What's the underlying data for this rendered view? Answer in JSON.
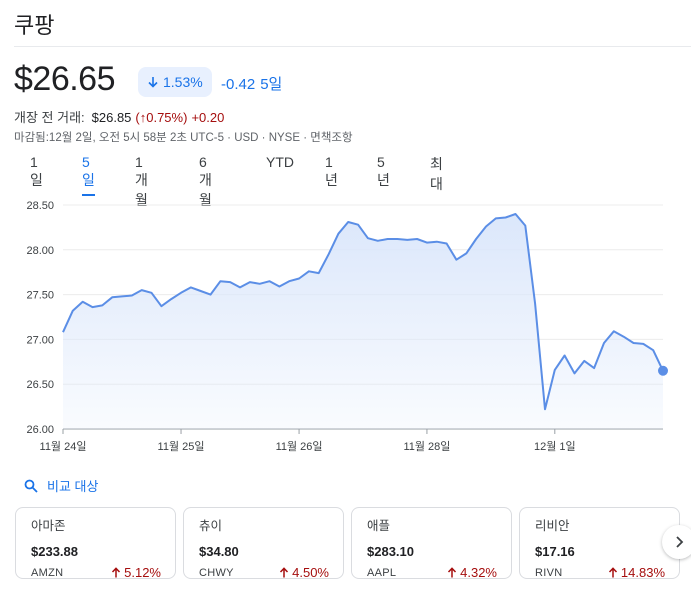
{
  "title": "쿠팡",
  "quote": {
    "price": "$26.65",
    "percent_change": "1.53%",
    "abs_change": "-0.42",
    "period": "5일",
    "change_color": "#1a73e8"
  },
  "premarket": {
    "label": "개장 전 거래:",
    "price": "$26.85",
    "percent": "(↑0.75%)",
    "abs": "+0.20",
    "color": "#a50e0e"
  },
  "meta": "마감됨:12월 2일, 오전 5시 58분 2초 UTC-5 · USD · NYSE · 면책조항",
  "tabs": [
    {
      "label": "1일",
      "active": false
    },
    {
      "label": "5일",
      "active": true
    },
    {
      "label": "1개월",
      "active": false
    },
    {
      "label": "6개월",
      "active": false
    },
    {
      "label": "YTD",
      "active": false
    },
    {
      "label": "1년",
      "active": false
    },
    {
      "label": "5년",
      "active": false
    },
    {
      "label": "최대",
      "active": false
    }
  ],
  "chart_data": {
    "type": "area",
    "title": "",
    "xlabel": "",
    "ylabel": "",
    "ylim": [
      26.0,
      28.5
    ],
    "y_ticks": [
      "28.50",
      "28.00",
      "27.50",
      "27.00",
      "26.50",
      "26.00"
    ],
    "x_ticks": [
      "11월 24일",
      "11월 25일",
      "11월 26일",
      "11월 28일",
      "12월 1일"
    ],
    "grid": true,
    "line_color": "#5b8ee6",
    "fill_color": "#dbe7fb",
    "series": [
      {
        "values": [
          27.08,
          27.32,
          27.42,
          27.36,
          27.38,
          27.47,
          27.48,
          27.49,
          27.55,
          27.52,
          27.37,
          27.45,
          27.52,
          27.58,
          27.54,
          27.5,
          27.65,
          27.64,
          27.58,
          27.64,
          27.62,
          27.65,
          27.59,
          27.65,
          27.68,
          27.76,
          27.74,
          27.95,
          28.18,
          28.31,
          28.28,
          28.13,
          28.1,
          28.12,
          28.12,
          28.11,
          28.12,
          28.08,
          28.09,
          28.07,
          27.89,
          27.96,
          28.12,
          28.26,
          28.35,
          28.36,
          28.4,
          28.27,
          27.4,
          26.22,
          26.66,
          26.82,
          26.62,
          26.76,
          26.68,
          26.96,
          27.09,
          27.03,
          26.96,
          26.95,
          26.88,
          26.65
        ]
      }
    ]
  },
  "compare": {
    "label": "비교 대상"
  },
  "cards": [
    {
      "name": "아마존",
      "price": "$233.88",
      "ticker": "AMZN",
      "change": "5.12%"
    },
    {
      "name": "츄이",
      "price": "$34.80",
      "ticker": "CHWY",
      "change": "4.50%"
    },
    {
      "name": "애플",
      "price": "$283.10",
      "ticker": "AAPL",
      "change": "4.32%"
    },
    {
      "name": "리비안",
      "price": "$17.16",
      "ticker": "RIVN",
      "change": "14.83%"
    }
  ],
  "icons": {
    "down_arrow": "arrow-down-icon",
    "up_arrow": "arrow-up-icon",
    "search": "search-icon",
    "next": "chevron-right-icon"
  }
}
